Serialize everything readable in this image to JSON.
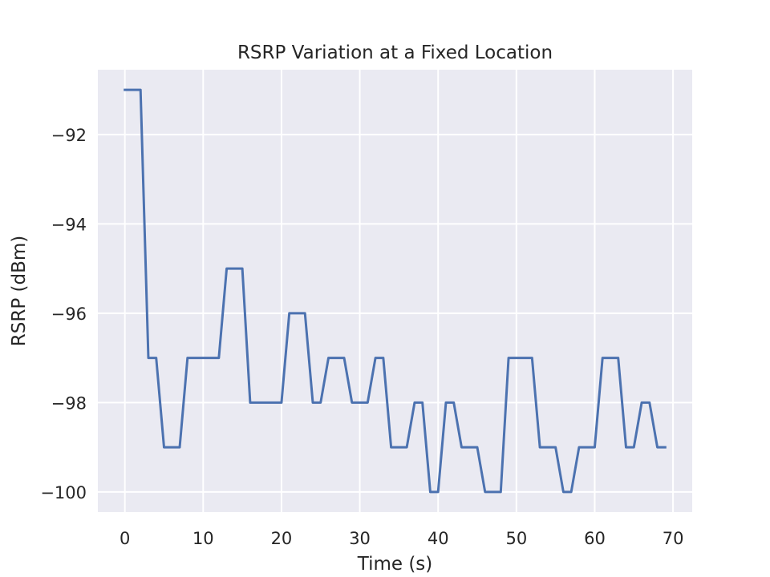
{
  "chart_data": {
    "type": "line",
    "title": "RSRP Variation at a Fixed Location",
    "xlabel": "Time (s)",
    "ylabel": "RSRP (dBm)",
    "xlim": [
      -3.45,
      72.45
    ],
    "ylim": [
      -100.45,
      -90.55
    ],
    "xticks": [
      0,
      10,
      20,
      30,
      40,
      50,
      60,
      70
    ],
    "xtick_labels": [
      "0",
      "10",
      "20",
      "30",
      "40",
      "50",
      "60",
      "70"
    ],
    "yticks": [
      -92,
      -94,
      -96,
      -98,
      -100
    ],
    "ytick_labels": [
      "−92",
      "−94",
      "−96",
      "−98",
      "−100"
    ],
    "grid": true,
    "colors": {
      "background": "#eaeaf2",
      "grid": "#ffffff",
      "line": "#4c72b0"
    },
    "series": [
      {
        "x": [
          0,
          1,
          2,
          3,
          4,
          5,
          6,
          7,
          8,
          9,
          10,
          11,
          12,
          13,
          14,
          15,
          16,
          17,
          18,
          19,
          20,
          21,
          22,
          23,
          24,
          25,
          26,
          27,
          28,
          29,
          30,
          31,
          32,
          33,
          34,
          35,
          36,
          37,
          38,
          39,
          40,
          41,
          42,
          43,
          44,
          45,
          46,
          47,
          48,
          49,
          50,
          51,
          52,
          53,
          54,
          55,
          56,
          57,
          58,
          59,
          60,
          61,
          62,
          63,
          64,
          65,
          66,
          67,
          68,
          69
        ],
        "values": [
          -91,
          -91,
          -91,
          -97,
          -97,
          -99,
          -99,
          -99,
          -97,
          -97,
          -97,
          -97,
          -97,
          -95,
          -95,
          -95,
          -98,
          -98,
          -98,
          -98,
          -98,
          -96,
          -96,
          -96,
          -98,
          -98,
          -97,
          -97,
          -97,
          -98,
          -98,
          -98,
          -97,
          -97,
          -99,
          -99,
          -99,
          -98,
          -98,
          -100,
          -100,
          -98,
          -98,
          -99,
          -99,
          -99,
          -100,
          -100,
          -100,
          -97,
          -97,
          -97,
          -97,
          -99,
          -99,
          -99,
          -100,
          -100,
          -99,
          -99,
          -99,
          -97,
          -97,
          -97,
          -99,
          -99,
          -98,
          -98,
          -99,
          -99
        ]
      }
    ]
  }
}
